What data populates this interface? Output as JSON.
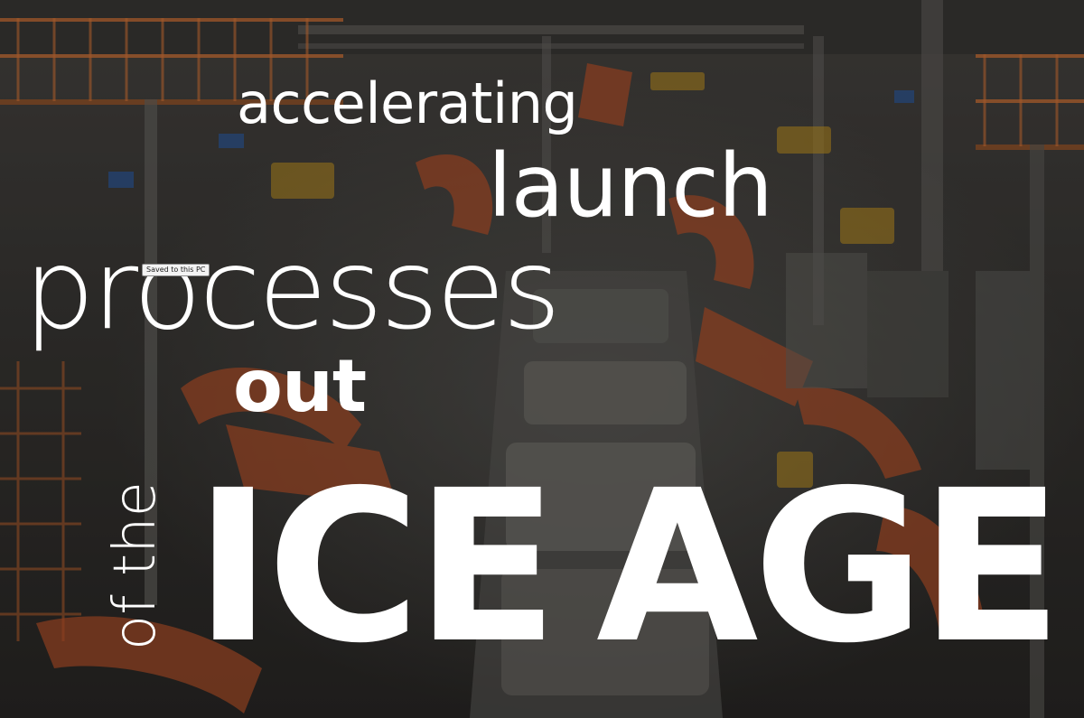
{
  "headline": {
    "line1": "accelerating",
    "line2": "launch",
    "line3": "processes",
    "line4": "out",
    "vertical": "of the",
    "big1": "ICE",
    "big2": "AGE"
  },
  "badge": {
    "label": "Saved to this PC"
  },
  "colors": {
    "text": "#ffffff",
    "overlay": "#000000",
    "robot_orange": "#c2562b",
    "railing_orange": "#e07a3a",
    "fixture_yellow": "#d9a420"
  }
}
